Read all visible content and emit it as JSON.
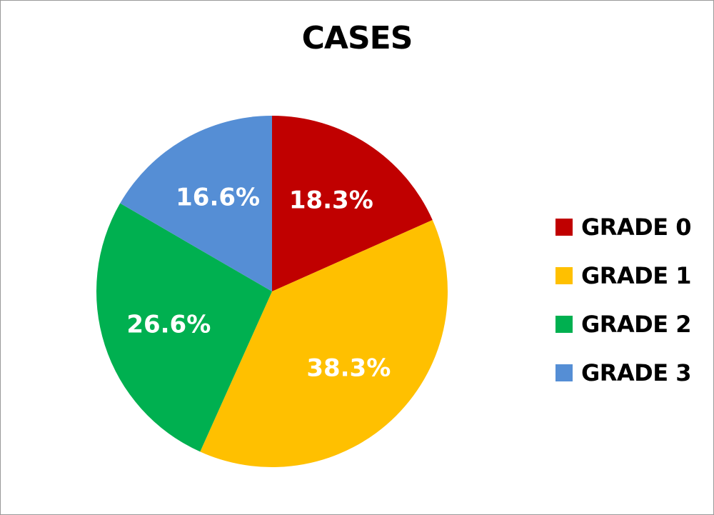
{
  "chart_data": {
    "type": "pie",
    "title": "CASES",
    "categories": [
      "GRADE 0",
      "GRADE 1",
      "GRADE 2",
      "GRADE 3"
    ],
    "values": [
      18.3,
      38.3,
      26.6,
      16.6
    ],
    "labels": [
      "18.3%",
      "38.3%",
      "26.6%",
      "16.6%"
    ],
    "colors": [
      "#c00000",
      "#ffc000",
      "#00b050",
      "#558ed5"
    ],
    "legend": "right"
  }
}
